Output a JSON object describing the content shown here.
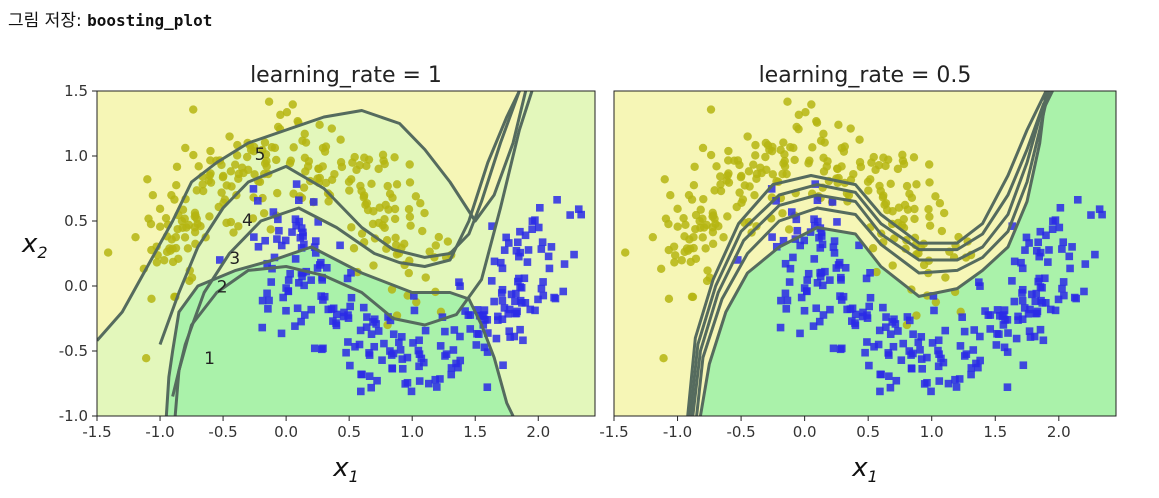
{
  "caption": {
    "prefix": "그림 저장: ",
    "name": "boosting_plot"
  },
  "colors": {
    "region_low": "#f6f6b6",
    "region_mid": "#e3f7bb",
    "region_high": "#aaf2aa",
    "boundary": "#556b5e",
    "class0": "#b5b512",
    "class1": "#2a2ae6"
  },
  "chart_data": [
    {
      "type": "scatter",
      "title": "learning_rate = 1",
      "xlabel": "x1",
      "ylabel": "x2",
      "xlim": [
        -1.5,
        2.45
      ],
      "ylim": [
        -1.0,
        1.5
      ],
      "xticks": [
        "-1.5",
        "-1.0",
        "-0.5",
        "0.0",
        "0.5",
        "1.0",
        "1.5",
        "2.0"
      ],
      "yticks": [
        "-1.0",
        "-0.5",
        "0.0",
        "0.5",
        "1.0",
        "1.5"
      ],
      "grid": false,
      "series": [
        {
          "marker": "circle",
          "color": "#b5b512",
          "description": "moons class 0"
        },
        {
          "marker": "square",
          "color": "#2a2ae6",
          "description": "moons class 1"
        }
      ],
      "boundary_labels": [
        {
          "text": "1",
          "x": -0.65,
          "y": -0.6
        },
        {
          "text": "2",
          "x": -0.55,
          "y": -0.05
        },
        {
          "text": "3",
          "x": -0.45,
          "y": 0.17
        },
        {
          "text": "4",
          "x": -0.35,
          "y": 0.46
        },
        {
          "text": "5",
          "x": -0.25,
          "y": 0.97
        }
      ],
      "boundaries": [
        [
          [
            -0.95,
            -1.0
          ],
          [
            -0.93,
            -0.7
          ],
          [
            -0.9,
            -0.5
          ],
          [
            -0.85,
            -0.2
          ],
          [
            -0.7,
            0.0
          ],
          [
            -0.4,
            0.12
          ],
          [
            -0.1,
            0.2
          ],
          [
            0.2,
            0.3
          ],
          [
            0.6,
            0.1
          ],
          [
            1.0,
            -0.05
          ],
          [
            1.3,
            -0.05
          ],
          [
            1.45,
            -0.1
          ],
          [
            1.55,
            -0.3
          ],
          [
            1.65,
            -0.55
          ],
          [
            1.75,
            -0.9
          ],
          [
            1.8,
            -1.0
          ]
        ],
        [
          [
            -0.88,
            -1.0
          ],
          [
            -0.85,
            -0.65
          ],
          [
            -0.75,
            -0.3
          ],
          [
            -0.55,
            -0.05
          ],
          [
            -0.3,
            0.12
          ],
          [
            0.0,
            0.15
          ],
          [
            0.3,
            0.08
          ],
          [
            0.6,
            -0.05
          ],
          [
            0.85,
            -0.25
          ],
          [
            1.1,
            -0.3
          ],
          [
            1.35,
            -0.22
          ],
          [
            1.55,
            0.05
          ],
          [
            1.7,
            0.6
          ],
          [
            1.85,
            1.2
          ],
          [
            1.95,
            1.5
          ]
        ],
        [
          [
            -0.9,
            -0.85
          ],
          [
            -0.8,
            -0.45
          ],
          [
            -0.65,
            -0.05
          ],
          [
            -0.45,
            0.25
          ],
          [
            -0.2,
            0.5
          ],
          [
            0.1,
            0.6
          ],
          [
            0.4,
            0.45
          ],
          [
            0.7,
            0.25
          ],
          [
            0.9,
            0.18
          ],
          [
            1.1,
            0.15
          ],
          [
            1.3,
            0.2
          ],
          [
            1.45,
            0.5
          ],
          [
            1.6,
            0.95
          ],
          [
            1.75,
            1.3
          ],
          [
            1.85,
            1.5
          ]
        ],
        [
          [
            -1.0,
            -0.45
          ],
          [
            -0.85,
            -0.05
          ],
          [
            -0.7,
            0.3
          ],
          [
            -0.5,
            0.6
          ],
          [
            -0.3,
            0.8
          ],
          [
            0.0,
            0.92
          ],
          [
            0.3,
            0.75
          ],
          [
            0.6,
            0.45
          ],
          [
            0.85,
            0.28
          ],
          [
            1.1,
            0.22
          ],
          [
            1.3,
            0.25
          ],
          [
            1.45,
            0.4
          ],
          [
            1.55,
            0.65
          ],
          [
            1.7,
            1.1
          ],
          [
            1.85,
            1.5
          ]
        ],
        [
          [
            -1.5,
            -0.42
          ],
          [
            -1.3,
            -0.2
          ],
          [
            -1.1,
            0.15
          ],
          [
            -0.9,
            0.5
          ],
          [
            -0.75,
            0.8
          ],
          [
            -0.55,
            0.95
          ],
          [
            -0.3,
            1.1
          ],
          [
            0.0,
            1.2
          ],
          [
            0.3,
            1.3
          ],
          [
            0.6,
            1.35
          ],
          [
            0.9,
            1.25
          ],
          [
            1.1,
            1.05
          ],
          [
            1.3,
            0.8
          ],
          [
            1.5,
            0.5
          ],
          [
            1.65,
            0.7
          ],
          [
            1.8,
            1.1
          ],
          [
            1.9,
            1.5
          ]
        ]
      ]
    },
    {
      "type": "scatter",
      "title": "learning_rate = 0.5",
      "xlabel": "x1",
      "ylabel": "",
      "xlim": [
        -1.5,
        2.45
      ],
      "ylim": [
        -1.0,
        1.5
      ],
      "xticks": [
        "-1.5",
        "-1.0",
        "-0.5",
        "0.0",
        "0.5",
        "1.0",
        "1.5",
        "2.0"
      ],
      "grid": false,
      "series": [
        {
          "marker": "circle",
          "color": "#b5b512",
          "description": "moons class 0"
        },
        {
          "marker": "square",
          "color": "#2a2ae6",
          "description": "moons class 1"
        }
      ],
      "boundaries": [
        [
          [
            -0.82,
            -1.0
          ],
          [
            -0.75,
            -0.6
          ],
          [
            -0.62,
            -0.2
          ],
          [
            -0.45,
            0.1
          ],
          [
            -0.2,
            0.3
          ],
          [
            0.1,
            0.45
          ],
          [
            0.4,
            0.4
          ],
          [
            0.6,
            0.15
          ],
          [
            0.9,
            -0.08
          ],
          [
            1.2,
            -0.02
          ],
          [
            1.4,
            0.12
          ],
          [
            1.6,
            0.3
          ],
          [
            1.75,
            0.65
          ],
          [
            1.85,
            1.1
          ],
          [
            1.9,
            1.5
          ]
        ],
        [
          [
            -0.85,
            -1.0
          ],
          [
            -0.8,
            -0.55
          ],
          [
            -0.65,
            -0.1
          ],
          [
            -0.45,
            0.25
          ],
          [
            -0.2,
            0.5
          ],
          [
            0.1,
            0.6
          ],
          [
            0.4,
            0.55
          ],
          [
            0.6,
            0.32
          ],
          [
            0.9,
            0.1
          ],
          [
            1.2,
            0.12
          ],
          [
            1.4,
            0.22
          ],
          [
            1.6,
            0.42
          ],
          [
            1.75,
            0.8
          ],
          [
            1.85,
            1.2
          ],
          [
            1.92,
            1.5
          ]
        ],
        [
          [
            -0.88,
            -1.0
          ],
          [
            -0.82,
            -0.5
          ],
          [
            -0.68,
            -0.05
          ],
          [
            -0.48,
            0.35
          ],
          [
            -0.2,
            0.62
          ],
          [
            0.1,
            0.7
          ],
          [
            0.4,
            0.65
          ],
          [
            0.6,
            0.4
          ],
          [
            0.9,
            0.2
          ],
          [
            1.2,
            0.2
          ],
          [
            1.4,
            0.3
          ],
          [
            1.6,
            0.55
          ],
          [
            1.75,
            0.95
          ],
          [
            1.85,
            1.3
          ],
          [
            1.95,
            1.5
          ]
        ],
        [
          [
            -0.9,
            -1.0
          ],
          [
            -0.84,
            -0.45
          ],
          [
            -0.7,
            0.0
          ],
          [
            -0.5,
            0.42
          ],
          [
            -0.2,
            0.7
          ],
          [
            0.1,
            0.78
          ],
          [
            0.4,
            0.72
          ],
          [
            0.6,
            0.48
          ],
          [
            0.9,
            0.28
          ],
          [
            1.2,
            0.28
          ],
          [
            1.4,
            0.4
          ],
          [
            1.6,
            0.7
          ],
          [
            1.75,
            1.05
          ],
          [
            1.88,
            1.4
          ],
          [
            1.95,
            1.5
          ]
        ],
        [
          [
            -0.92,
            -1.0
          ],
          [
            -0.86,
            -0.4
          ],
          [
            -0.72,
            0.05
          ],
          [
            -0.52,
            0.48
          ],
          [
            -0.25,
            0.78
          ],
          [
            0.05,
            0.85
          ],
          [
            0.4,
            0.78
          ],
          [
            0.6,
            0.55
          ],
          [
            0.9,
            0.33
          ],
          [
            1.2,
            0.33
          ],
          [
            1.4,
            0.48
          ],
          [
            1.6,
            0.85
          ],
          [
            1.75,
            1.2
          ],
          [
            1.9,
            1.5
          ]
        ]
      ]
    }
  ]
}
